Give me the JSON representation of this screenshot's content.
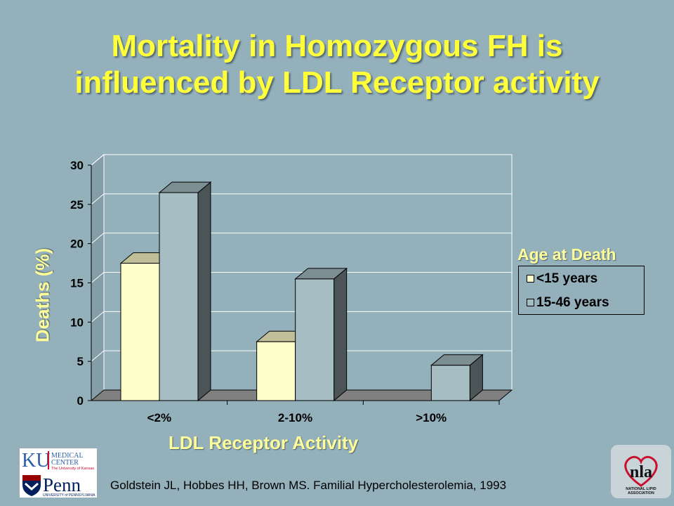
{
  "slide": {
    "title_line1": "Mortality in Homozygous FH is",
    "title_line2": "influenced by LDL Receptor activity",
    "citation": "Goldstein JL, Hobbes HH, Brown MS. Familial Hypercholesterolemia, 1993"
  },
  "logos": {
    "ku_mark": "KU",
    "ku_line1": "MEDICAL",
    "ku_line2": "CENTER",
    "ku_line3": "The University of Kansas",
    "penn_mark": "Penn",
    "penn_line": "UNIVERSITY of PENNSYLVANIA",
    "nla_mark": "nla",
    "nla_line1": "NATIONAL LIPID",
    "nla_line2": "ASSOCIATION"
  },
  "colors": {
    "background": "#93b0bb",
    "title": "#ffff3a",
    "axis_titles": "#ffff99",
    "series_under_15": "#ffffcc",
    "series_15_46": "#a6bdc4",
    "floor": "#808080"
  },
  "chart_data": {
    "type": "bar",
    "style": "3d-clustered",
    "xlabel": "LDL Receptor Activity",
    "ylabel": "Deaths (%)",
    "categories": [
      "<2%",
      "2-10%",
      ">10%"
    ],
    "ylim": [
      0,
      30
    ],
    "yticks": [
      0,
      5,
      10,
      15,
      20,
      25,
      30
    ],
    "gridlines": true,
    "legend_title": "Age at Death",
    "legend_position": "right",
    "series": [
      {
        "name": "<15 years",
        "values": [
          17.5,
          7.5,
          0
        ]
      },
      {
        "name": "15-46 years",
        "values": [
          26.5,
          15.5,
          4.5
        ]
      }
    ]
  }
}
